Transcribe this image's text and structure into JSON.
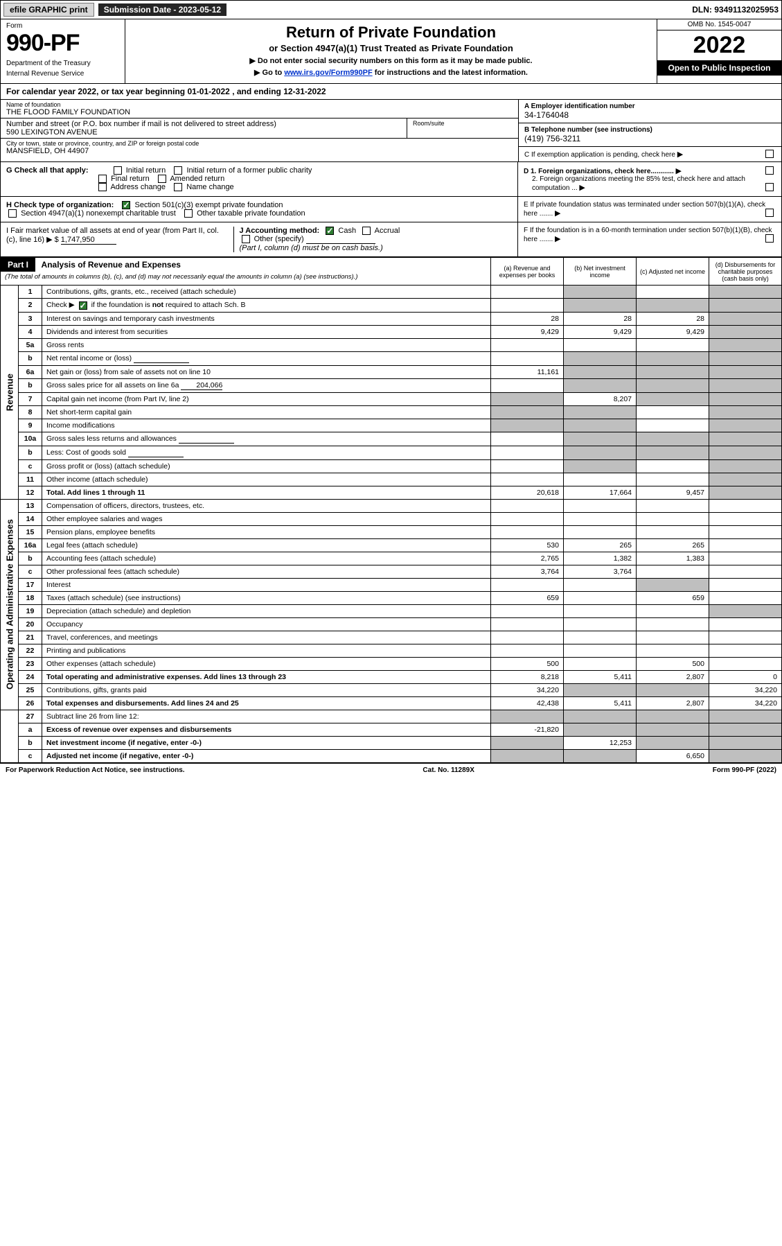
{
  "topbar": {
    "efile": "efile GRAPHIC print",
    "submission_label": "Submission Date - 2023-05-12",
    "dln": "DLN: 93491132025953"
  },
  "header": {
    "form_label": "Form",
    "form_number": "990-PF",
    "dept1": "Department of the Treasury",
    "dept2": "Internal Revenue Service",
    "title": "Return of Private Foundation",
    "subtitle": "or Section 4947(a)(1) Trust Treated as Private Foundation",
    "instr1": "▶ Do not enter social security numbers on this form as it may be made public.",
    "instr2_pre": "▶ Go to ",
    "instr2_link": "www.irs.gov/Form990PF",
    "instr2_post": " for instructions and the latest information.",
    "omb": "OMB No. 1545-0047",
    "year": "2022",
    "open": "Open to Public Inspection"
  },
  "calyear": {
    "text_pre": "For calendar year 2022, or tax year beginning ",
    "begin": "01-01-2022",
    "text_mid": " , and ending ",
    "end": "12-31-2022"
  },
  "entity": {
    "name_lbl": "Name of foundation",
    "name": "THE FLOOD FAMILY FOUNDATION",
    "addr_lbl": "Number and street (or P.O. box number if mail is not delivered to street address)",
    "addr": "590 LEXINGTON AVENUE",
    "suite_lbl": "Room/suite",
    "city_lbl": "City or town, state or province, country, and ZIP or foreign postal code",
    "city": "MANSFIELD, OH  44907",
    "ein_lbl": "A Employer identification number",
    "ein": "34-1764048",
    "phone_lbl": "B Telephone number (see instructions)",
    "phone": "(419) 756-3211",
    "c_lbl": "C If exemption application is pending, check here"
  },
  "checks": {
    "g_lbl": "G Check all that apply:",
    "g_opts": [
      "Initial return",
      "Initial return of a former public charity",
      "Final return",
      "Amended return",
      "Address change",
      "Name change"
    ],
    "h_lbl": "H Check type of organization:",
    "h_501": "Section 501(c)(3) exempt private foundation",
    "h_4947": "Section 4947(a)(1) nonexempt charitable trust",
    "h_other": "Other taxable private foundation",
    "i_lbl": "I Fair market value of all assets at end of year (from Part II, col. (c), line 16) ▶ $",
    "i_val": "1,747,950",
    "j_lbl": "J Accounting method:",
    "j_cash": "Cash",
    "j_accrual": "Accrual",
    "j_other": "Other (specify)",
    "j_note": "(Part I, column (d) must be on cash basis.)",
    "d1": "D 1. Foreign organizations, check here............",
    "d2": "2. Foreign organizations meeting the 85% test, check here and attach computation ...",
    "e": "E  If private foundation status was terminated under section 507(b)(1)(A), check here .......",
    "f": "F  If the foundation is in a 60-month termination under section 507(b)(1)(B), check here ......."
  },
  "part1": {
    "label": "Part I",
    "title": "Analysis of Revenue and Expenses",
    "title_note": "(The total of amounts in columns (b), (c), and (d) may not necessarily equal the amounts in column (a) (see instructions).)",
    "col_a": "(a) Revenue and expenses per books",
    "col_b": "(b) Net investment income",
    "col_c": "(c) Adjusted net income",
    "col_d": "(d) Disbursements for charitable purposes (cash basis only)"
  },
  "sections": {
    "revenue": "Revenue",
    "opex": "Operating and Administrative Expenses"
  },
  "rows": [
    {
      "n": "1",
      "d": "Contributions, gifts, grants, etc., received (attach schedule)",
      "a": "",
      "b": "",
      "c": "",
      "sb": true,
      "sc": false,
      "sd": true
    },
    {
      "n": "2",
      "d": "Check ▶ ☑ if the foundation is not required to attach Sch. B",
      "a": "",
      "b": "",
      "c": "",
      "sb": true,
      "sc": true,
      "sd": true,
      "chk": true
    },
    {
      "n": "3",
      "d": "Interest on savings and temporary cash investments",
      "a": "28",
      "b": "28",
      "c": "28",
      "sd": true
    },
    {
      "n": "4",
      "d": "Dividends and interest from securities",
      "a": "9,429",
      "b": "9,429",
      "c": "9,429",
      "sd": true
    },
    {
      "n": "5a",
      "d": "Gross rents",
      "a": "",
      "b": "",
      "c": "",
      "sd": true
    },
    {
      "n": "b",
      "d": "Net rental income or (loss)",
      "a": "",
      "b": "",
      "c": "",
      "sb": true,
      "sc": true,
      "sd": true,
      "inline": true
    },
    {
      "n": "6a",
      "d": "Net gain or (loss) from sale of assets not on line 10",
      "a": "11,161",
      "b": "",
      "c": "",
      "sb": true,
      "sc": true,
      "sd": true
    },
    {
      "n": "b",
      "d": "Gross sales price for all assets on line 6a",
      "a": "",
      "b": "",
      "c": "",
      "sb": true,
      "sc": true,
      "sd": true,
      "inline": true,
      "inlineval": "204,066"
    },
    {
      "n": "7",
      "d": "Capital gain net income (from Part IV, line 2)",
      "a": "",
      "b": "8,207",
      "c": "",
      "sa": true,
      "sc": true,
      "sd": true
    },
    {
      "n": "8",
      "d": "Net short-term capital gain",
      "a": "",
      "b": "",
      "c": "",
      "sa": true,
      "sb": true,
      "sd": true
    },
    {
      "n": "9",
      "d": "Income modifications",
      "a": "",
      "b": "",
      "c": "",
      "sa": true,
      "sb": true,
      "sd": true
    },
    {
      "n": "10a",
      "d": "Gross sales less returns and allowances",
      "a": "",
      "b": "",
      "c": "",
      "sb": true,
      "sc": true,
      "sd": true,
      "inline": true
    },
    {
      "n": "b",
      "d": "Less: Cost of goods sold",
      "a": "",
      "b": "",
      "c": "",
      "sb": true,
      "sc": true,
      "sd": true,
      "inline": true
    },
    {
      "n": "c",
      "d": "Gross profit or (loss) (attach schedule)",
      "a": "",
      "b": "",
      "c": "",
      "sb": true,
      "sd": true
    },
    {
      "n": "11",
      "d": "Other income (attach schedule)",
      "a": "",
      "b": "",
      "c": "",
      "sd": true
    },
    {
      "n": "12",
      "d": "Total. Add lines 1 through 11",
      "a": "20,618",
      "b": "17,664",
      "c": "9,457",
      "sd": true,
      "bold": true
    }
  ],
  "oprows": [
    {
      "n": "13",
      "d": "Compensation of officers, directors, trustees, etc.",
      "a": "",
      "b": "",
      "c": "",
      "dd": ""
    },
    {
      "n": "14",
      "d": "Other employee salaries and wages",
      "a": "",
      "b": "",
      "c": "",
      "dd": ""
    },
    {
      "n": "15",
      "d": "Pension plans, employee benefits",
      "a": "",
      "b": "",
      "c": "",
      "dd": ""
    },
    {
      "n": "16a",
      "d": "Legal fees (attach schedule)",
      "a": "530",
      "b": "265",
      "c": "265",
      "dd": ""
    },
    {
      "n": "b",
      "d": "Accounting fees (attach schedule)",
      "a": "2,765",
      "b": "1,382",
      "c": "1,383",
      "dd": ""
    },
    {
      "n": "c",
      "d": "Other professional fees (attach schedule)",
      "a": "3,764",
      "b": "3,764",
      "c": "",
      "dd": ""
    },
    {
      "n": "17",
      "d": "Interest",
      "a": "",
      "b": "",
      "c": "",
      "dd": "",
      "sc": true
    },
    {
      "n": "18",
      "d": "Taxes (attach schedule) (see instructions)",
      "a": "659",
      "b": "",
      "c": "659",
      "dd": ""
    },
    {
      "n": "19",
      "d": "Depreciation (attach schedule) and depletion",
      "a": "",
      "b": "",
      "c": "",
      "dd": "",
      "sd": true
    },
    {
      "n": "20",
      "d": "Occupancy",
      "a": "",
      "b": "",
      "c": "",
      "dd": ""
    },
    {
      "n": "21",
      "d": "Travel, conferences, and meetings",
      "a": "",
      "b": "",
      "c": "",
      "dd": ""
    },
    {
      "n": "22",
      "d": "Printing and publications",
      "a": "",
      "b": "",
      "c": "",
      "dd": ""
    },
    {
      "n": "23",
      "d": "Other expenses (attach schedule)",
      "a": "500",
      "b": "",
      "c": "500",
      "dd": ""
    },
    {
      "n": "24",
      "d": "Total operating and administrative expenses. Add lines 13 through 23",
      "a": "8,218",
      "b": "5,411",
      "c": "2,807",
      "dd": "0",
      "bold": true
    },
    {
      "n": "25",
      "d": "Contributions, gifts, grants paid",
      "a": "34,220",
      "b": "",
      "c": "",
      "dd": "34,220",
      "sb": true,
      "sc": true
    },
    {
      "n": "26",
      "d": "Total expenses and disbursements. Add lines 24 and 25",
      "a": "42,438",
      "b": "5,411",
      "c": "2,807",
      "dd": "34,220",
      "bold": true
    }
  ],
  "endrows": [
    {
      "n": "27",
      "d": "Subtract line 26 from line 12:",
      "a": "",
      "b": "",
      "c": "",
      "dd": "",
      "sa": true,
      "sb": true,
      "sc": true,
      "sd": true
    },
    {
      "n": "a",
      "d": "Excess of revenue over expenses and disbursements",
      "a": "-21,820",
      "b": "",
      "c": "",
      "dd": "",
      "sb": true,
      "sc": true,
      "sd": true,
      "bold": true
    },
    {
      "n": "b",
      "d": "Net investment income (if negative, enter -0-)",
      "a": "",
      "b": "12,253",
      "c": "",
      "dd": "",
      "sa": true,
      "sc": true,
      "sd": true,
      "bold": true
    },
    {
      "n": "c",
      "d": "Adjusted net income (if negative, enter -0-)",
      "a": "",
      "b": "",
      "c": "6,650",
      "dd": "",
      "sa": true,
      "sb": true,
      "sd": true,
      "bold": true
    }
  ],
  "footer": {
    "left": "For Paperwork Reduction Act Notice, see instructions.",
    "mid": "Cat. No. 11289X",
    "right": "Form 990-PF (2022)"
  }
}
